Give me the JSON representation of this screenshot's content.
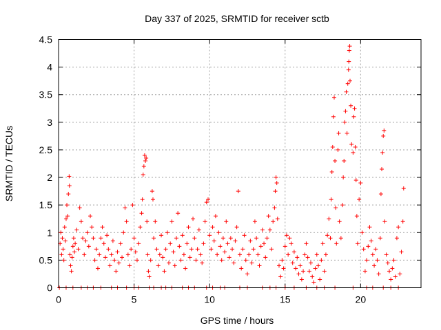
{
  "chart_data": {
    "type": "scatter",
    "title": "Day 337 of 2025, SRMTID for receiver sctb",
    "xlabel": "GPS time / hours",
    "ylabel": "SRMTID / TECUs",
    "xlim": [
      0,
      24
    ],
    "ylim": [
      0,
      4.5
    ],
    "xticks": [
      0,
      5,
      10,
      15,
      20
    ],
    "xtick_labels": [
      "0",
      "5",
      "10",
      "15",
      "20"
    ],
    "yticks": [
      0,
      0.5,
      1,
      1.5,
      2,
      2.5,
      3,
      3.5,
      4,
      4.5
    ],
    "ytick_labels": [
      "0",
      "0.5",
      "1",
      "1.5",
      "2",
      "2.5",
      "3",
      "3.5",
      "4",
      "4.5"
    ],
    "grid": true,
    "marker": "+",
    "color": "#ff0000",
    "series": [
      {
        "name": "SRMTID",
        "points": [
          [
            0.1,
            0.8
          ],
          [
            0.15,
            1.0
          ],
          [
            0.2,
            0.6
          ],
          [
            0.25,
            0.9
          ],
          [
            0.3,
            0.7
          ],
          [
            0.35,
            0.5
          ],
          [
            0.4,
            1.1
          ],
          [
            0.45,
            0.85
          ],
          [
            0.5,
            1.25
          ],
          [
            0.55,
            1.5
          ],
          [
            0.6,
            1.3
          ],
          [
            0.65,
            1.7
          ],
          [
            0.7,
            2.02
          ],
          [
            0.72,
            1.85
          ],
          [
            0.75,
            0.6
          ],
          [
            0.8,
            0.4
          ],
          [
            0.85,
            0.3
          ],
          [
            0.9,
            0.55
          ],
          [
            0.95,
            0.75
          ],
          [
            1.0,
            0.9
          ],
          [
            1.05,
            0.65
          ],
          [
            1.1,
            0.8
          ],
          [
            1.2,
            1.05
          ],
          [
            1.3,
            0.7
          ],
          [
            1.4,
            1.45
          ],
          [
            1.5,
            1.2
          ],
          [
            1.6,
            0.9
          ],
          [
            1.7,
            0.6
          ],
          [
            1.8,
            0.85
          ],
          [
            1.9,
            1.0
          ],
          [
            2.0,
            0.75
          ],
          [
            2.1,
            1.3
          ],
          [
            2.2,
            1.1
          ],
          [
            2.3,
            0.9
          ],
          [
            2.4,
            0.5
          ],
          [
            2.5,
            0.7
          ],
          [
            2.6,
            0.35
          ],
          [
            2.7,
            0.6
          ],
          [
            2.8,
            0.9
          ],
          [
            2.9,
            1.1
          ],
          [
            3.0,
            0.8
          ],
          [
            3.1,
            0.55
          ],
          [
            3.2,
            0.95
          ],
          [
            3.3,
            0.7
          ],
          [
            3.4,
            0.4
          ],
          [
            3.5,
            0.6
          ],
          [
            3.6,
            0.85
          ],
          [
            3.7,
            0.5
          ],
          [
            3.8,
            0.3
          ],
          [
            3.9,
            0.65
          ],
          [
            4.0,
            0.45
          ],
          [
            4.1,
            0.8
          ],
          [
            4.2,
            0.55
          ],
          [
            4.3,
            1.0
          ],
          [
            4.4,
            1.45
          ],
          [
            4.5,
            1.2
          ],
          [
            4.6,
            0.6
          ],
          [
            4.7,
            0.4
          ],
          [
            4.8,
            0.7
          ],
          [
            4.9,
            1.5
          ],
          [
            5.0,
            0.9
          ],
          [
            5.1,
            0.65
          ],
          [
            5.2,
            0.5
          ],
          [
            5.3,
            0.8
          ],
          [
            5.4,
            1.1
          ],
          [
            5.5,
            1.35
          ],
          [
            5.55,
            1.6
          ],
          [
            5.6,
            2.05
          ],
          [
            5.65,
            2.2
          ],
          [
            5.7,
            2.4
          ],
          [
            5.75,
            2.3
          ],
          [
            5.8,
            2.35
          ],
          [
            5.85,
            1.2
          ],
          [
            5.9,
            0.6
          ],
          [
            5.95,
            0.3
          ],
          [
            6.0,
            0.2
          ],
          [
            6.1,
            0.5
          ],
          [
            6.2,
            1.75
          ],
          [
            6.25,
            1.6
          ],
          [
            6.3,
            0.9
          ],
          [
            6.4,
            1.2
          ],
          [
            6.5,
            0.7
          ],
          [
            6.6,
            0.4
          ],
          [
            6.7,
            0.6
          ],
          [
            6.8,
            0.95
          ],
          [
            6.9,
            0.55
          ],
          [
            7.0,
            0.3
          ],
          [
            7.1,
            0.7
          ],
          [
            7.2,
            1.0
          ],
          [
            7.3,
            0.45
          ],
          [
            7.4,
            0.8
          ],
          [
            7.5,
            1.2
          ],
          [
            7.6,
            0.65
          ],
          [
            7.7,
            0.4
          ],
          [
            7.8,
            0.9
          ],
          [
            7.9,
            1.35
          ],
          [
            8.0,
            0.75
          ],
          [
            8.1,
            0.5
          ],
          [
            8.2,
            0.95
          ],
          [
            8.3,
            0.6
          ],
          [
            8.4,
            0.35
          ],
          [
            8.5,
            0.8
          ],
          [
            8.6,
            1.1
          ],
          [
            8.7,
            0.55
          ],
          [
            8.8,
            0.7
          ],
          [
            8.9,
            1.25
          ],
          [
            9.0,
            0.9
          ],
          [
            9.1,
            0.5
          ],
          [
            9.2,
            0.7
          ],
          [
            9.3,
            1.05
          ],
          [
            9.4,
            0.6
          ],
          [
            9.5,
            0.45
          ],
          [
            9.6,
            0.8
          ],
          [
            9.7,
            1.2
          ],
          [
            9.8,
            1.55
          ],
          [
            9.9,
            1.6
          ],
          [
            10.0,
            0.95
          ],
          [
            10.1,
            0.7
          ],
          [
            10.2,
            1.1
          ],
          [
            10.3,
            0.85
          ],
          [
            10.4,
            1.3
          ],
          [
            10.5,
            0.6
          ],
          [
            10.6,
            1.0
          ],
          [
            10.7,
            0.75
          ],
          [
            10.8,
            0.5
          ],
          [
            10.9,
            0.9
          ],
          [
            11.0,
            0.65
          ],
          [
            11.1,
            1.2
          ],
          [
            11.2,
            0.8
          ],
          [
            11.3,
            0.55
          ],
          [
            11.4,
            0.9
          ],
          [
            11.5,
            0.7
          ],
          [
            11.6,
            0.45
          ],
          [
            11.7,
            0.85
          ],
          [
            11.8,
            1.1
          ],
          [
            11.9,
            1.75
          ],
          [
            12.0,
            0.6
          ],
          [
            12.1,
            0.35
          ],
          [
            12.2,
            0.7
          ],
          [
            12.3,
            0.95
          ],
          [
            12.4,
            0.5
          ],
          [
            12.5,
            0.25
          ],
          [
            12.6,
            0.6
          ],
          [
            12.7,
            0.85
          ],
          [
            12.8,
            0.45
          ],
          [
            12.9,
            0.7
          ],
          [
            13.0,
            1.2
          ],
          [
            13.1,
            0.9
          ],
          [
            13.2,
            0.6
          ],
          [
            13.3,
            0.4
          ],
          [
            13.4,
            0.75
          ],
          [
            13.5,
            1.05
          ],
          [
            13.6,
            0.8
          ],
          [
            13.7,
            0.55
          ],
          [
            13.8,
            0.9
          ],
          [
            13.9,
            1.3
          ],
          [
            14.0,
            1.05
          ],
          [
            14.1,
            0.7
          ],
          [
            14.2,
            1.2
          ],
          [
            14.3,
            1.45
          ],
          [
            14.35,
            1.75
          ],
          [
            14.4,
            2.0
          ],
          [
            14.45,
            1.9
          ],
          [
            14.5,
            1.25
          ],
          [
            14.6,
            0.4
          ],
          [
            14.7,
            0.2
          ],
          [
            14.8,
            0.5
          ],
          [
            14.9,
            0.35
          ],
          [
            15.0,
            0.75
          ],
          [
            15.1,
            0.95
          ],
          [
            15.2,
            0.6
          ],
          [
            15.3,
            0.9
          ],
          [
            15.4,
            0.8
          ],
          [
            15.5,
            0.45
          ],
          [
            15.6,
            0.65
          ],
          [
            15.7,
            0.35
          ],
          [
            15.8,
            0.55
          ],
          [
            15.9,
            0.25
          ],
          [
            16.0,
            0.4
          ],
          [
            16.1,
            0.15
          ],
          [
            16.2,
            0.3
          ],
          [
            16.3,
            0.6
          ],
          [
            16.4,
            0.8
          ],
          [
            16.5,
            0.55
          ],
          [
            16.6,
            0.3
          ],
          [
            16.7,
            0.45
          ],
          [
            16.8,
            0.2
          ],
          [
            16.9,
            0.1
          ],
          [
            17.0,
            0.35
          ],
          [
            17.1,
            0.6
          ],
          [
            17.2,
            0.4
          ],
          [
            17.3,
            0.15
          ],
          [
            17.4,
            0.5
          ],
          [
            17.5,
            0.8
          ],
          [
            17.6,
            0.3
          ],
          [
            17.7,
            0.6
          ],
          [
            17.8,
            0.95
          ],
          [
            17.9,
            1.25
          ],
          [
            18.0,
            0.9
          ],
          [
            18.05,
            1.6
          ],
          [
            18.1,
            2.1
          ],
          [
            18.15,
            2.55
          ],
          [
            18.2,
            3.1
          ],
          [
            18.25,
            3.45
          ],
          [
            18.3,
            2.3
          ],
          [
            18.35,
            1.45
          ],
          [
            18.4,
            0.8
          ],
          [
            18.5,
            2.5
          ],
          [
            18.55,
            2.8
          ],
          [
            18.6,
            1.2
          ],
          [
            18.7,
            0.9
          ],
          [
            18.8,
            1.5
          ],
          [
            18.85,
            2.0
          ],
          [
            18.9,
            2.3
          ],
          [
            18.95,
            3.0
          ],
          [
            19.0,
            3.2
          ],
          [
            19.05,
            3.55
          ],
          [
            19.1,
            2.8
          ],
          [
            19.15,
            3.7
          ],
          [
            19.2,
            3.95
          ],
          [
            19.22,
            4.1
          ],
          [
            19.25,
            4.3
          ],
          [
            19.28,
            4.38
          ],
          [
            19.3,
            3.75
          ],
          [
            19.35,
            3.3
          ],
          [
            19.4,
            2.6
          ],
          [
            19.5,
            2.45
          ],
          [
            19.55,
            3.1
          ],
          [
            19.6,
            3.25
          ],
          [
            19.65,
            2.55
          ],
          [
            19.7,
            1.95
          ],
          [
            19.75,
            1.3
          ],
          [
            19.8,
            0.8
          ],
          [
            19.9,
            1.6
          ],
          [
            20.0,
            1.9
          ],
          [
            20.1,
            1.0
          ],
          [
            20.2,
            0.7
          ],
          [
            20.3,
            0.3
          ],
          [
            20.4,
            0.5
          ],
          [
            20.5,
            0.75
          ],
          [
            20.6,
            1.1
          ],
          [
            20.7,
            0.85
          ],
          [
            20.8,
            0.6
          ],
          [
            20.9,
            0.4
          ],
          [
            21.0,
            0.7
          ],
          [
            21.1,
            0.5
          ],
          [
            21.2,
            0.25
          ],
          [
            21.3,
            0.9
          ],
          [
            21.35,
            1.7
          ],
          [
            21.4,
            2.15
          ],
          [
            21.45,
            2.45
          ],
          [
            21.5,
            2.75
          ],
          [
            21.55,
            2.85
          ],
          [
            21.6,
            1.2
          ],
          [
            21.7,
            0.6
          ],
          [
            21.8,
            0.45
          ],
          [
            21.9,
            0.3
          ],
          [
            22.0,
            0.15
          ],
          [
            22.1,
            0.35
          ],
          [
            22.2,
            0.5
          ],
          [
            22.3,
            0.2
          ],
          [
            22.4,
            0.9
          ],
          [
            22.5,
            1.1
          ],
          [
            22.6,
            0.25
          ],
          [
            22.7,
            0.65
          ],
          [
            22.8,
            1.2
          ],
          [
            22.85,
            1.8
          ],
          [
            0.05,
            0
          ],
          [
            0.5,
            0
          ],
          [
            0.95,
            0
          ],
          [
            1.5,
            0
          ],
          [
            1.9,
            0
          ],
          [
            2.3,
            0
          ],
          [
            2.8,
            0
          ],
          [
            3.5,
            0
          ],
          [
            3.9,
            0
          ],
          [
            4.5,
            0
          ],
          [
            5.0,
            0
          ],
          [
            5.3,
            0
          ],
          [
            6.0,
            0
          ],
          [
            6.3,
            0
          ],
          [
            6.8,
            0
          ],
          [
            7.1,
            0
          ],
          [
            7.5,
            0
          ],
          [
            8.2,
            0
          ],
          [
            8.6,
            0
          ],
          [
            9.0,
            0
          ],
          [
            9.8,
            0
          ],
          [
            10.2,
            0
          ],
          [
            10.7,
            0
          ],
          [
            11.0,
            0
          ],
          [
            12.0,
            0
          ],
          [
            12.5,
            0
          ],
          [
            13.5,
            0
          ],
          [
            14.0,
            0
          ],
          [
            14.4,
            0
          ],
          [
            15.0,
            0
          ],
          [
            15.6,
            0
          ],
          [
            16.4,
            0
          ],
          [
            17.1,
            0
          ],
          [
            17.6,
            0
          ],
          [
            18.3,
            0
          ],
          [
            19.5,
            0
          ],
          [
            20.4,
            0
          ],
          [
            20.8,
            0
          ],
          [
            21.5,
            0
          ],
          [
            22.0,
            0
          ],
          [
            22.5,
            0
          ]
        ]
      }
    ]
  }
}
